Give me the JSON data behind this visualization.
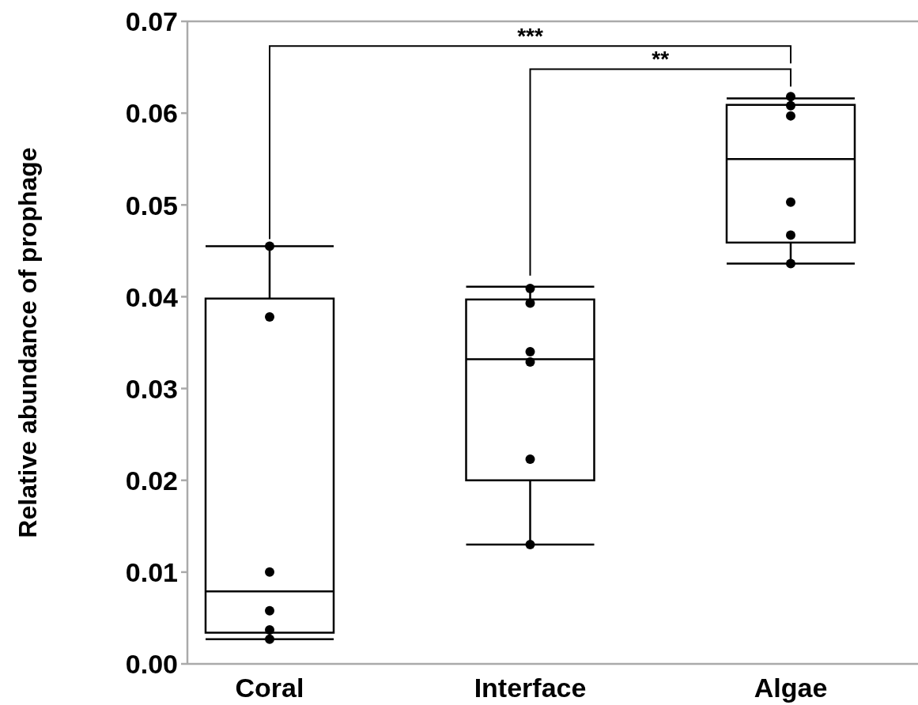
{
  "chart_data": {
    "type": "box",
    "ylabel": "Relative abundance of prophage",
    "categories": [
      "Coral",
      "Interface",
      "Algae"
    ],
    "ylim": [
      0,
      0.07
    ],
    "yticks": [
      {
        "value": 0,
        "label": "0.00"
      },
      0.01,
      0.02,
      0.03,
      0.04,
      0.05,
      0.06,
      0.07
    ],
    "marker": "circle",
    "annotations": [
      "***",
      "**"
    ],
    "series": [
      {
        "color": "#000000",
        "boxes": [
          {
            "low": 0.0027,
            "q1": 0.0034,
            "median": 0.0079,
            "q3": 0.0398,
            "high": 0.0455
          },
          {
            "low": 0.013,
            "q1": 0.02,
            "median": 0.0332,
            "q3": 0.0397,
            "high": 0.0411
          },
          {
            "low": 0.0436,
            "q1": 0.0459,
            "median": 0.055,
            "q3": 0.0609,
            "high": 0.0616
          }
        ]
      },
      {
        "type": "scatter",
        "color": "#000000",
        "x": [
          "Coral",
          "Coral",
          "Coral",
          "Coral",
          "Coral",
          "Coral",
          "Interface",
          "Interface",
          "Interface",
          "Interface",
          "Interface",
          "Interface",
          "Algae",
          "Algae",
          "Algae",
          "Algae",
          "Algae",
          "Algae"
        ],
        "values": [
          0.0455,
          0.0378,
          0.01,
          0.0058,
          0.0037,
          0.0027,
          0.0409,
          0.0393,
          0.034,
          0.0329,
          0.0223,
          0.013,
          0.0618,
          0.0608,
          0.0597,
          0.0503,
          0.0467,
          0.0436
        ]
      }
    ]
  }
}
